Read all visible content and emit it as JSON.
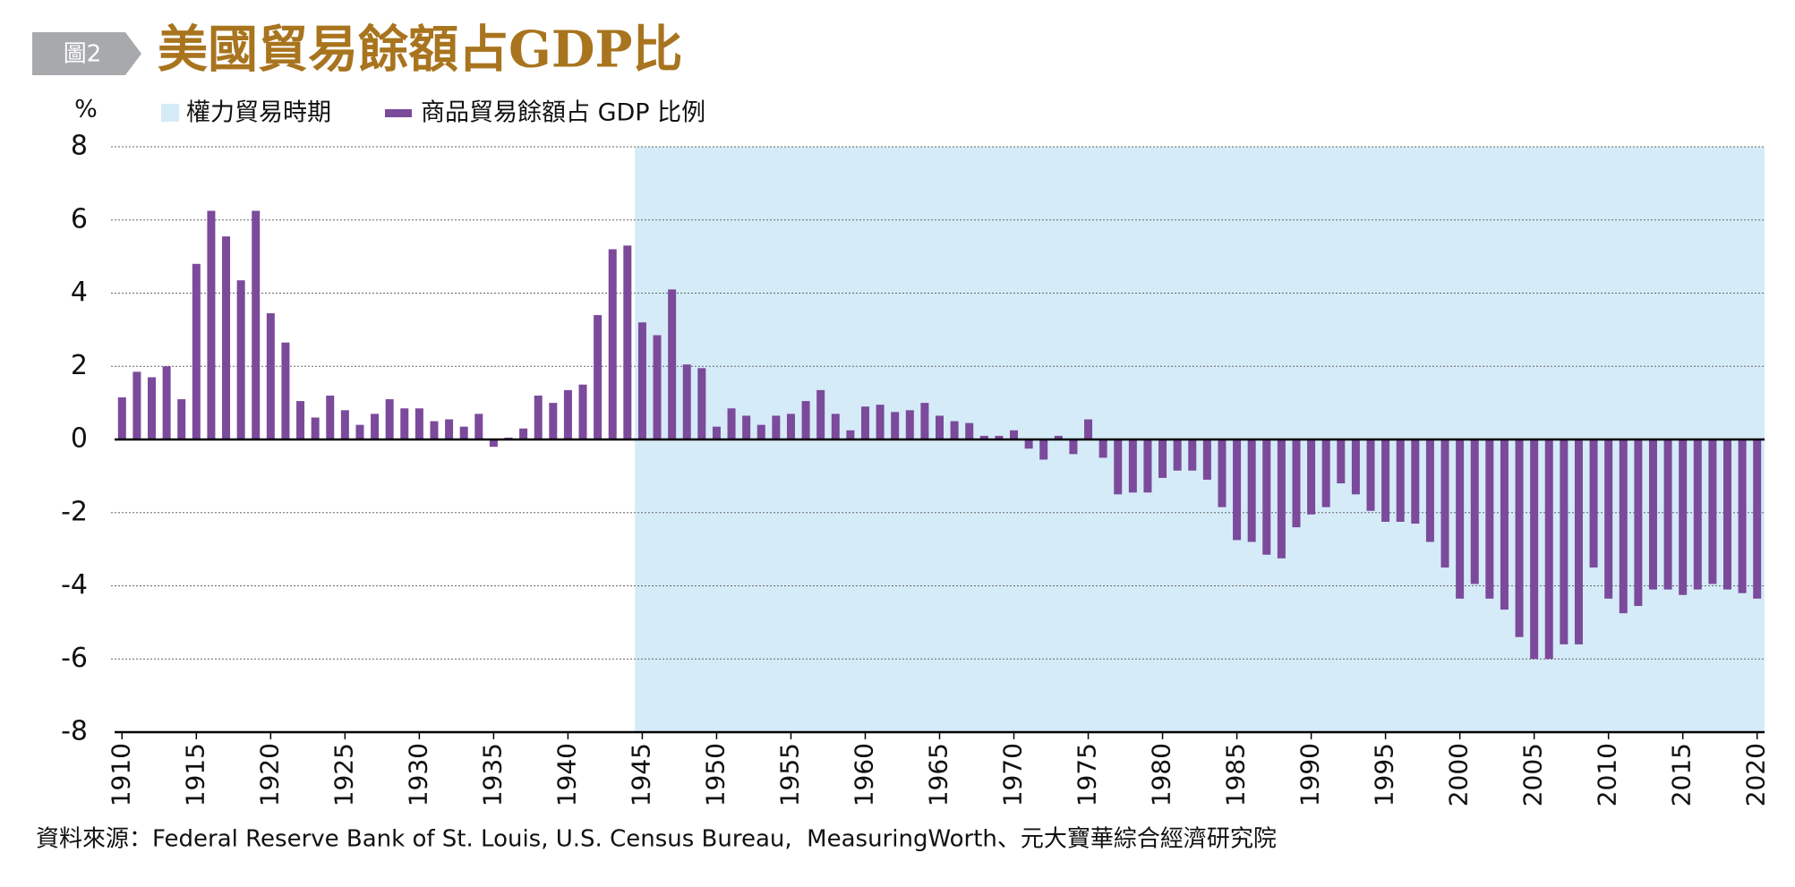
{
  "chart_data": {
    "type": "bar",
    "badge": "圖2",
    "title": "美國貿易餘額占GDP比",
    "y_unit": "%",
    "source": "資料來源：Federal Reserve Bank of St. Louis, U.S. Census Bureau,  MeasuringWorth、元大寶華綜合經濟研究院",
    "shade": {
      "name": "權力貿易時期",
      "color": "#d5ebf8",
      "from": 1944.5,
      "to": 2020.5
    },
    "x": [
      1910,
      1911,
      1912,
      1913,
      1914,
      1915,
      1916,
      1917,
      1918,
      1919,
      1920,
      1921,
      1922,
      1923,
      1924,
      1925,
      1926,
      1927,
      1928,
      1929,
      1930,
      1931,
      1932,
      1933,
      1934,
      1935,
      1936,
      1937,
      1938,
      1939,
      1940,
      1941,
      1942,
      1943,
      1944,
      1945,
      1946,
      1947,
      1948,
      1949,
      1950,
      1951,
      1952,
      1953,
      1954,
      1955,
      1956,
      1957,
      1958,
      1959,
      1960,
      1961,
      1962,
      1963,
      1964,
      1965,
      1966,
      1967,
      1968,
      1969,
      1970,
      1971,
      1972,
      1973,
      1974,
      1975,
      1976,
      1977,
      1978,
      1979,
      1980,
      1981,
      1982,
      1983,
      1984,
      1985,
      1986,
      1987,
      1988,
      1989,
      1990,
      1991,
      1992,
      1993,
      1994,
      1995,
      1996,
      1997,
      1998,
      1999,
      2000,
      2001,
      2002,
      2003,
      2004,
      2005,
      2006,
      2007,
      2008,
      2009,
      2010,
      2011,
      2012,
      2013,
      2014,
      2015,
      2016,
      2017,
      2018,
      2019,
      2020
    ],
    "series": [
      {
        "name": "商品貿易餘額占 GDP 比例",
        "color": "#7b4a9b",
        "values": [
          1.15,
          1.85,
          1.7,
          2.0,
          1.1,
          4.8,
          6.25,
          5.55,
          4.35,
          6.25,
          3.45,
          2.65,
          1.05,
          0.6,
          1.2,
          0.8,
          0.4,
          0.7,
          1.1,
          0.85,
          0.85,
          0.5,
          0.55,
          0.35,
          0.7,
          -0.2,
          0.05,
          0.3,
          1.2,
          1.0,
          1.35,
          1.5,
          3.4,
          5.2,
          5.3,
          3.2,
          2.85,
          4.1,
          2.05,
          1.95,
          0.35,
          0.85,
          0.65,
          0.4,
          0.65,
          0.7,
          1.05,
          1.35,
          0.7,
          0.25,
          0.9,
          0.95,
          0.75,
          0.8,
          1.0,
          0.65,
          0.5,
          0.45,
          0.1,
          0.1,
          0.25,
          -0.25,
          -0.55,
          0.1,
          -0.4,
          0.55,
          -0.5,
          -1.5,
          -1.45,
          -1.45,
          -1.05,
          -0.85,
          -0.85,
          -1.1,
          -1.85,
          -2.75,
          -2.8,
          -3.15,
          -3.25,
          -2.4,
          -2.05,
          -1.85,
          -1.2,
          -1.5,
          -1.95,
          -2.25,
          -2.25,
          -2.3,
          -2.8,
          -3.5,
          -4.35,
          -3.95,
          -4.35,
          -4.65,
          -5.4,
          -6.0,
          -6.0,
          -5.6,
          -5.6,
          -3.5,
          -4.35,
          -4.75,
          -4.55,
          -4.1,
          -4.1,
          -4.25,
          -4.1,
          -3.95,
          -4.1,
          -4.2,
          -4.35
        ]
      }
    ],
    "xlim": [
      1909.5,
      2020.5
    ],
    "xticks": [
      1910,
      1915,
      1920,
      1925,
      1930,
      1935,
      1940,
      1945,
      1950,
      1955,
      1960,
      1965,
      1970,
      1975,
      1980,
      1985,
      1990,
      1995,
      2000,
      2005,
      2010,
      2015,
      2020
    ],
    "ylim": [
      -8,
      8
    ],
    "yticks": [
      8,
      6,
      4,
      2,
      0,
      -2,
      -4,
      -6,
      -8
    ],
    "grid": true
  }
}
